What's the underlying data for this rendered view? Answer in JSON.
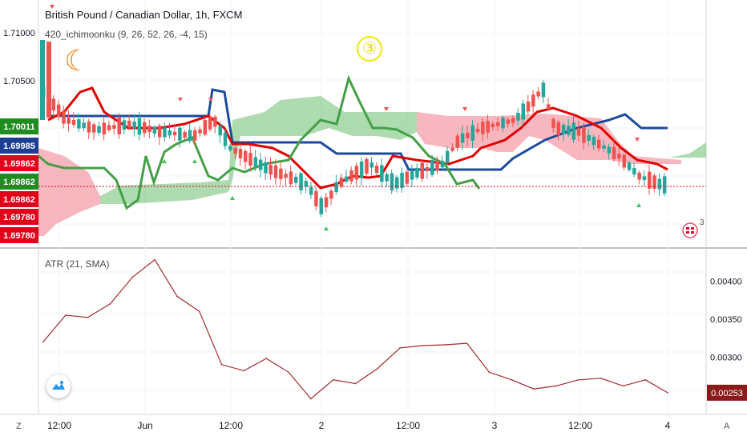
{
  "header": {
    "title": "British Pound / Canadian Dollar, 1h, FXCM",
    "indicator": "420_ichimoonku (9, 26, 52, 26, -4, 15)",
    "event_marker": "③"
  },
  "atr_panel": {
    "title": "ATR (21, SMA)"
  },
  "price_axis": {
    "tick_labels": [
      "1.71000",
      "1.70500"
    ],
    "price_badges": [
      {
        "label": "1.70011",
        "color": "#1e8c1e"
      },
      {
        "label": "1.69985",
        "color": "#1c3f94"
      },
      {
        "label": "1.69862",
        "color": "#e0001a"
      },
      {
        "label": "1.69862",
        "color": "#1e8c1e"
      },
      {
        "label": "1.69862",
        "color": "#e0001a"
      },
      {
        "label": "1.69780",
        "color": "#e0001a"
      },
      {
        "label": "1.69780",
        "color": "#e0001a"
      }
    ]
  },
  "atr_axis": {
    "tick_labels": [
      "0.00400",
      "0.00350",
      "0.00300"
    ],
    "current_badge": {
      "label": "0.00253",
      "color": "#8b1a1a"
    }
  },
  "time_axis": {
    "labels": [
      "12:00",
      "Jun",
      "12:00",
      "2",
      "12:00",
      "3",
      "12:00",
      "4"
    ]
  },
  "corner_labels": {
    "left": "Z",
    "right": "A"
  },
  "colors": {
    "bull": "#26a69a",
    "bear": "#ef5350",
    "tenkan": "#e00000",
    "kijun": "#1c4a9c",
    "chikou": "#43a047",
    "cloud_bull": "#4caf50",
    "cloud_bear": "#f06070",
    "atr_line": "#a52a2a",
    "grid": "#f0f3fa"
  },
  "chart_data": {
    "type": "line",
    "title": "ATR (21, SMA)",
    "xlabel": "",
    "ylabel": "",
    "ylim": [
      0.00235,
      0.00435
    ],
    "series": [
      {
        "name": "ATR (21, SMA)",
        "x": [
          "12:00",
          "",
          "",
          "",
          "Jun",
          "",
          "",
          "",
          "12:00",
          "",
          "",
          "",
          "2",
          "",
          "",
          "",
          "12:00",
          "",
          "",
          "",
          "3",
          "",
          "",
          "",
          "12:00",
          "",
          "",
          "",
          "4"
        ],
        "values": [
          0.0032,
          0.00355,
          0.00352,
          0.0037,
          0.00405,
          0.00428,
          0.0038,
          0.0036,
          0.0029,
          0.00282,
          0.00298,
          0.0028,
          0.00245,
          0.0027,
          0.00265,
          0.00285,
          0.00312,
          0.00315,
          0.00316,
          0.00318,
          0.0028,
          0.0027,
          0.00258,
          0.00262,
          0.0027,
          0.00272,
          0.00262,
          0.0027,
          0.00253
        ]
      }
    ]
  }
}
